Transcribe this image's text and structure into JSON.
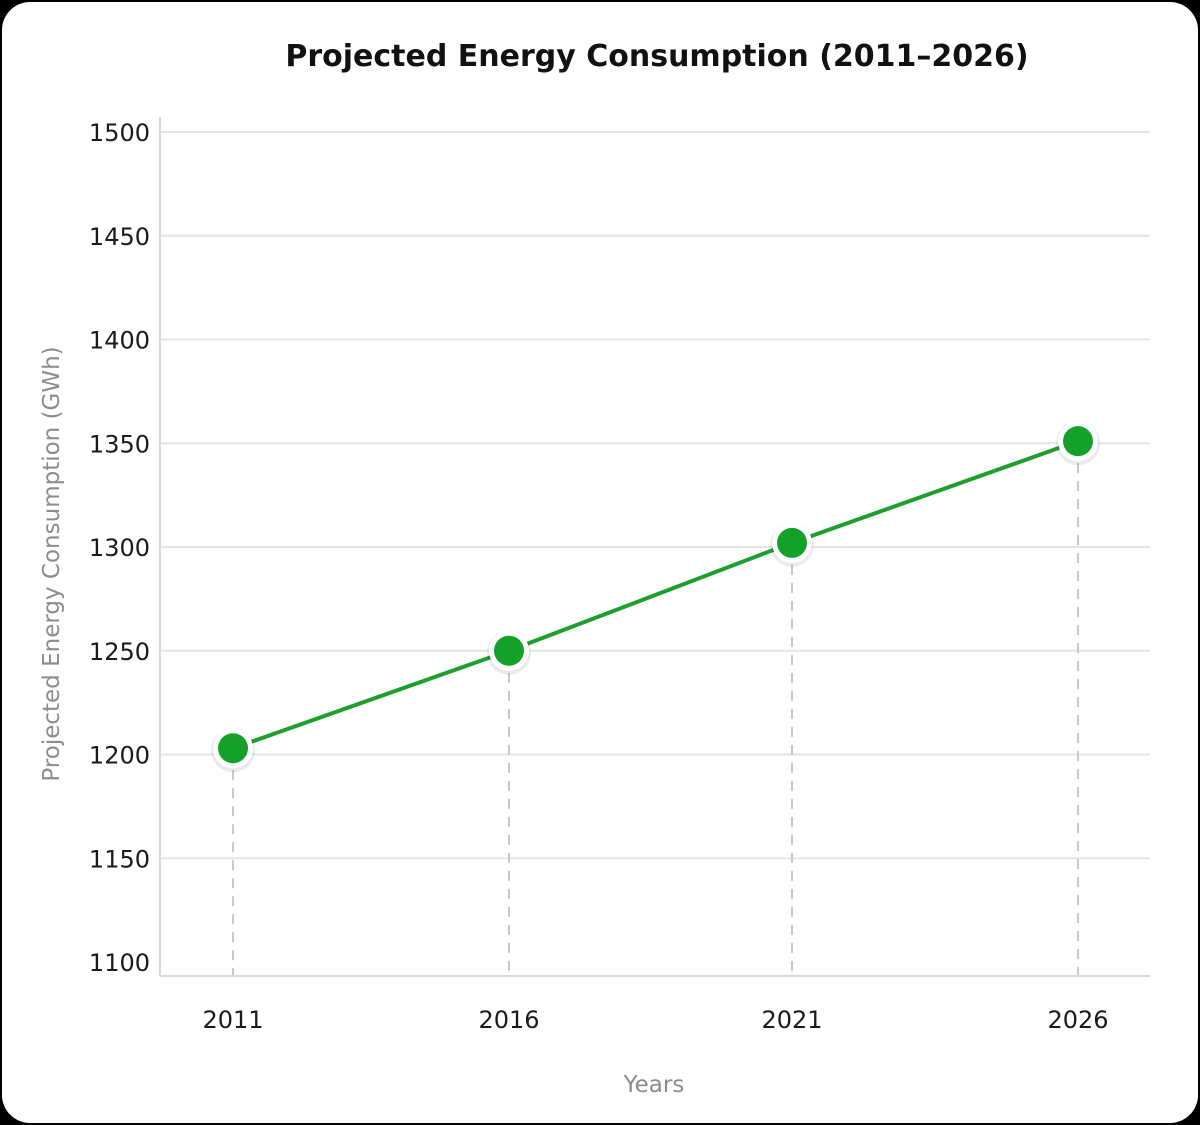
{
  "chart_data": {
    "type": "line",
    "title": "Projected Energy Consumption (2011–2026)",
    "xlabel": "Years",
    "ylabel": "Projected Energy Consumption (GWh)",
    "categories": [
      "2011",
      "2016",
      "2021",
      "2026"
    ],
    "series": [
      {
        "values": [
          1203,
          1250,
          1302,
          1351
        ]
      }
    ],
    "ylim": [
      1100,
      1500
    ],
    "yticks": [
      1100,
      1150,
      1200,
      1250,
      1300,
      1350,
      1400,
      1450,
      1500
    ],
    "grid": true,
    "legend": "none",
    "colors": {
      "line": "#1e9e2e",
      "marker": "#13a12a",
      "grid": "#e6e6e6",
      "drop_line": "#c8c8c8"
    }
  }
}
